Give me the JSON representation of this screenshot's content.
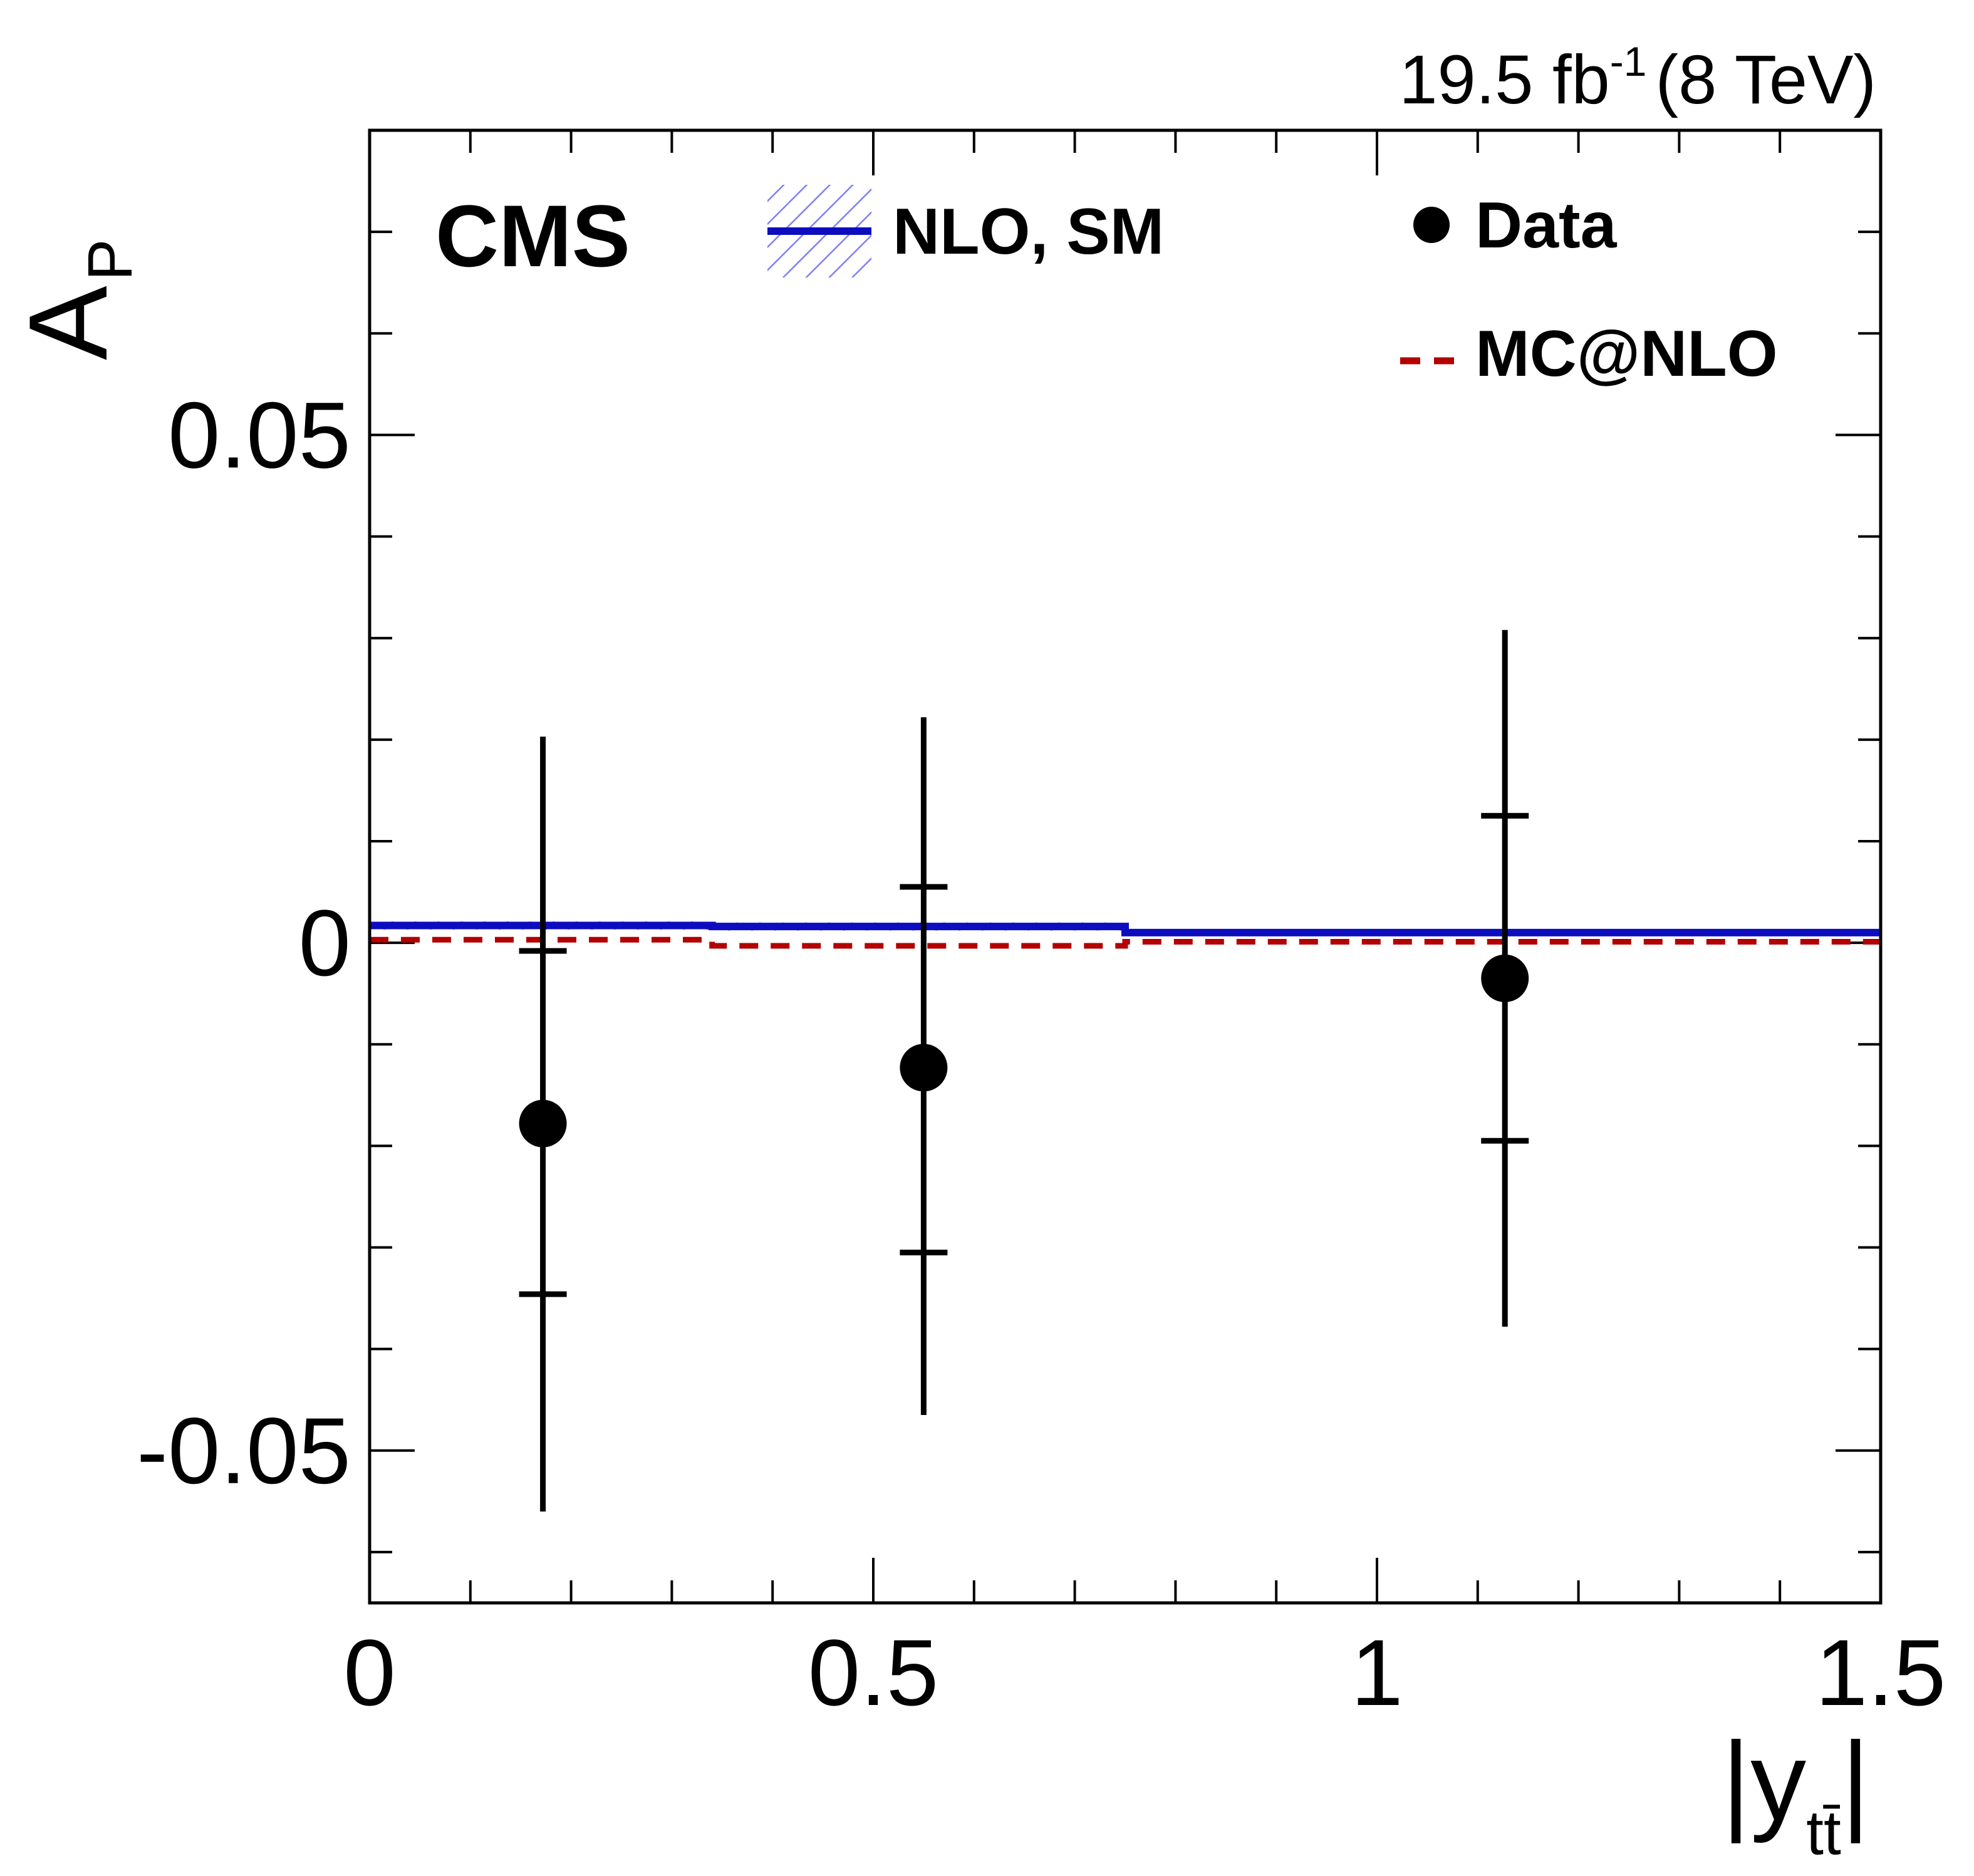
{
  "chart_data": {
    "type": "scatter",
    "title": "",
    "experiment_label": "CMS",
    "lumi_label": {
      "value": "19.5 fb",
      "exponent": "-1",
      "energy": "(8 TeV)"
    },
    "xlabel": {
      "text": "|y",
      "subscript": "tt̄",
      "close": "|"
    },
    "ylabel": {
      "text": "A",
      "subscript": "P"
    },
    "xlim": [
      0,
      1.5
    ],
    "ylim": [
      -0.065,
      0.08
    ],
    "x_ticks": [
      {
        "value": 0,
        "label": "0"
      },
      {
        "value": 0.5,
        "label": "0.5"
      },
      {
        "value": 1,
        "label": "1"
      },
      {
        "value": 1.5,
        "label": "1.5"
      }
    ],
    "y_ticks": [
      {
        "value": -0.05,
        "label": "-0.05"
      },
      {
        "value": 0,
        "label": "0"
      },
      {
        "value": 0.05,
        "label": "0.05"
      }
    ],
    "x_minor_step": 0.1,
    "y_minor_step": 0.01,
    "legend": [
      {
        "label": "NLO, SM",
        "style": "solid-with-band",
        "color": "#0d0dbf"
      },
      {
        "label": "Data",
        "style": "marker",
        "color": "#000000"
      },
      {
        "label": "MC@NLO",
        "style": "dashed",
        "color": "#b30000"
      }
    ],
    "series": [
      {
        "name": "Data",
        "x": [
          0.172,
          0.55,
          1.127
        ],
        "y": [
          -0.0178,
          -0.0123,
          -0.0035
        ],
        "stat_low": [
          -0.0346,
          -0.0305,
          -0.0195
        ],
        "stat_high": [
          -0.0008,
          0.0055,
          0.0125
        ],
        "total_low": [
          -0.056,
          -0.0465,
          -0.0378
        ],
        "total_high": [
          0.0203,
          0.0222,
          0.0308
        ]
      },
      {
        "name": "NLO, SM",
        "bin_edges": [
          0,
          0.34,
          0.75,
          1.5
        ],
        "values": [
          0.0017,
          0.0016,
          0.001
        ],
        "uncertainty": [
          0.0004,
          0.0004,
          0.0003
        ]
      },
      {
        "name": "MC@NLO",
        "bin_edges": [
          0,
          0.34,
          0.75,
          1.5
        ],
        "values": [
          0.0003,
          -0.0003,
          0.0001
        ]
      }
    ]
  }
}
